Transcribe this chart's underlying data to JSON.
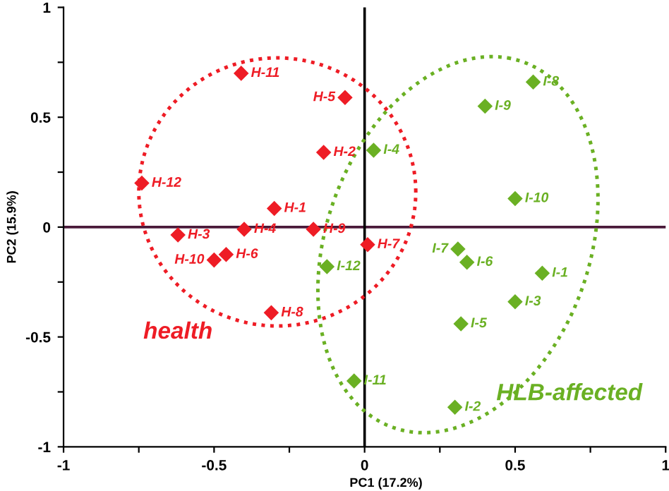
{
  "chart_data": {
    "type": "scatter",
    "xlabel": "PC1 (17.2%)",
    "ylabel": "PC2 (15.9%)",
    "xlim": [
      -1,
      1
    ],
    "ylim": [
      -1,
      1
    ],
    "xticks": [
      -1,
      {
        "value": -0.75,
        "label": null
      },
      -0.5,
      {
        "value": -0.25,
        "label": null
      },
      0,
      {
        "value": 0.25,
        "label": null
      },
      0.5,
      {
        "value": 0.75,
        "label": null
      },
      1
    ],
    "yticks": [
      -1,
      {
        "value": -0.75,
        "label": null
      },
      -0.5,
      {
        "value": -0.25,
        "label": null
      },
      0,
      {
        "value": 0.25,
        "label": null
      },
      0.5,
      {
        "value": 0.75,
        "label": null
      },
      1
    ],
    "marker": "diamond",
    "grid": false,
    "legend": false,
    "series": [
      {
        "name": "health",
        "color": "#ee1c25",
        "x": [
          -0.3,
          -0.136,
          -0.62,
          -0.4,
          -0.065,
          -0.46,
          0.01,
          -0.31,
          -0.17,
          -0.5,
          -0.41,
          -0.74
        ],
        "values": [
          0.085,
          0.34,
          -0.036,
          -0.01,
          0.59,
          -0.125,
          -0.08,
          -0.39,
          -0.01,
          -0.15,
          0.7,
          0.2
        ]
      },
      {
        "name": "HLB-affected",
        "color": "#6ab023",
        "x": [
          0.59,
          0.3,
          0.5,
          0.03,
          0.32,
          0.34,
          0.31,
          0.56,
          0.4,
          0.5,
          -0.035,
          -0.125
        ],
        "values": [
          -0.21,
          -0.82,
          -0.34,
          0.35,
          -0.44,
          -0.16,
          -0.1,
          0.66,
          0.55,
          0.13,
          -0.7,
          -0.18
        ]
      }
    ],
    "ref_lines": [
      {
        "axis": "y",
        "value": 0,
        "color": "#4a1a3a"
      },
      {
        "axis": "x",
        "value": 0,
        "color": "#000000"
      }
    ],
    "annotations": [
      {
        "text": "H-1",
        "x": -0.3,
        "y": 0.085
      },
      {
        "text": "H-2",
        "x": -0.136,
        "y": 0.34
      },
      {
        "text": "H-3",
        "x": -0.62,
        "y": -0.036
      },
      {
        "text": "H-4",
        "x": -0.4,
        "y": -0.01
      },
      {
        "text": "H-5",
        "x": -0.065,
        "y": 0.59
      },
      {
        "text": "H-6",
        "x": -0.46,
        "y": -0.125
      },
      {
        "text": "H-7",
        "x": 0.01,
        "y": -0.08
      },
      {
        "text": "H-8",
        "x": -0.31,
        "y": -0.39
      },
      {
        "text": "H-9",
        "x": -0.17,
        "y": -0.01
      },
      {
        "text": "H-10",
        "x": -0.5,
        "y": -0.15
      },
      {
        "text": "H-11",
        "x": -0.41,
        "y": 0.7
      },
      {
        "text": "H-12",
        "x": -0.74,
        "y": 0.2
      },
      {
        "text": "I-1",
        "x": 0.59,
        "y": -0.21
      },
      {
        "text": "I-2",
        "x": 0.3,
        "y": -0.82
      },
      {
        "text": "I-3",
        "x": 0.5,
        "y": -0.34
      },
      {
        "text": "I-4",
        "x": 0.03,
        "y": 0.35
      },
      {
        "text": "I-5",
        "x": 0.32,
        "y": -0.44
      },
      {
        "text": "I-6",
        "x": 0.34,
        "y": -0.16
      },
      {
        "text": "I-7",
        "x": 0.31,
        "y": -0.1
      },
      {
        "text": "I-8",
        "x": 0.56,
        "y": 0.66
      },
      {
        "text": "I-9",
        "x": 0.4,
        "y": 0.55
      },
      {
        "text": "I-10",
        "x": 0.5,
        "y": 0.13
      },
      {
        "text": "I-11",
        "x": -0.035,
        "y": -0.7
      },
      {
        "text": "I-12",
        "x": -0.125,
        "y": -0.18
      }
    ]
  }
}
